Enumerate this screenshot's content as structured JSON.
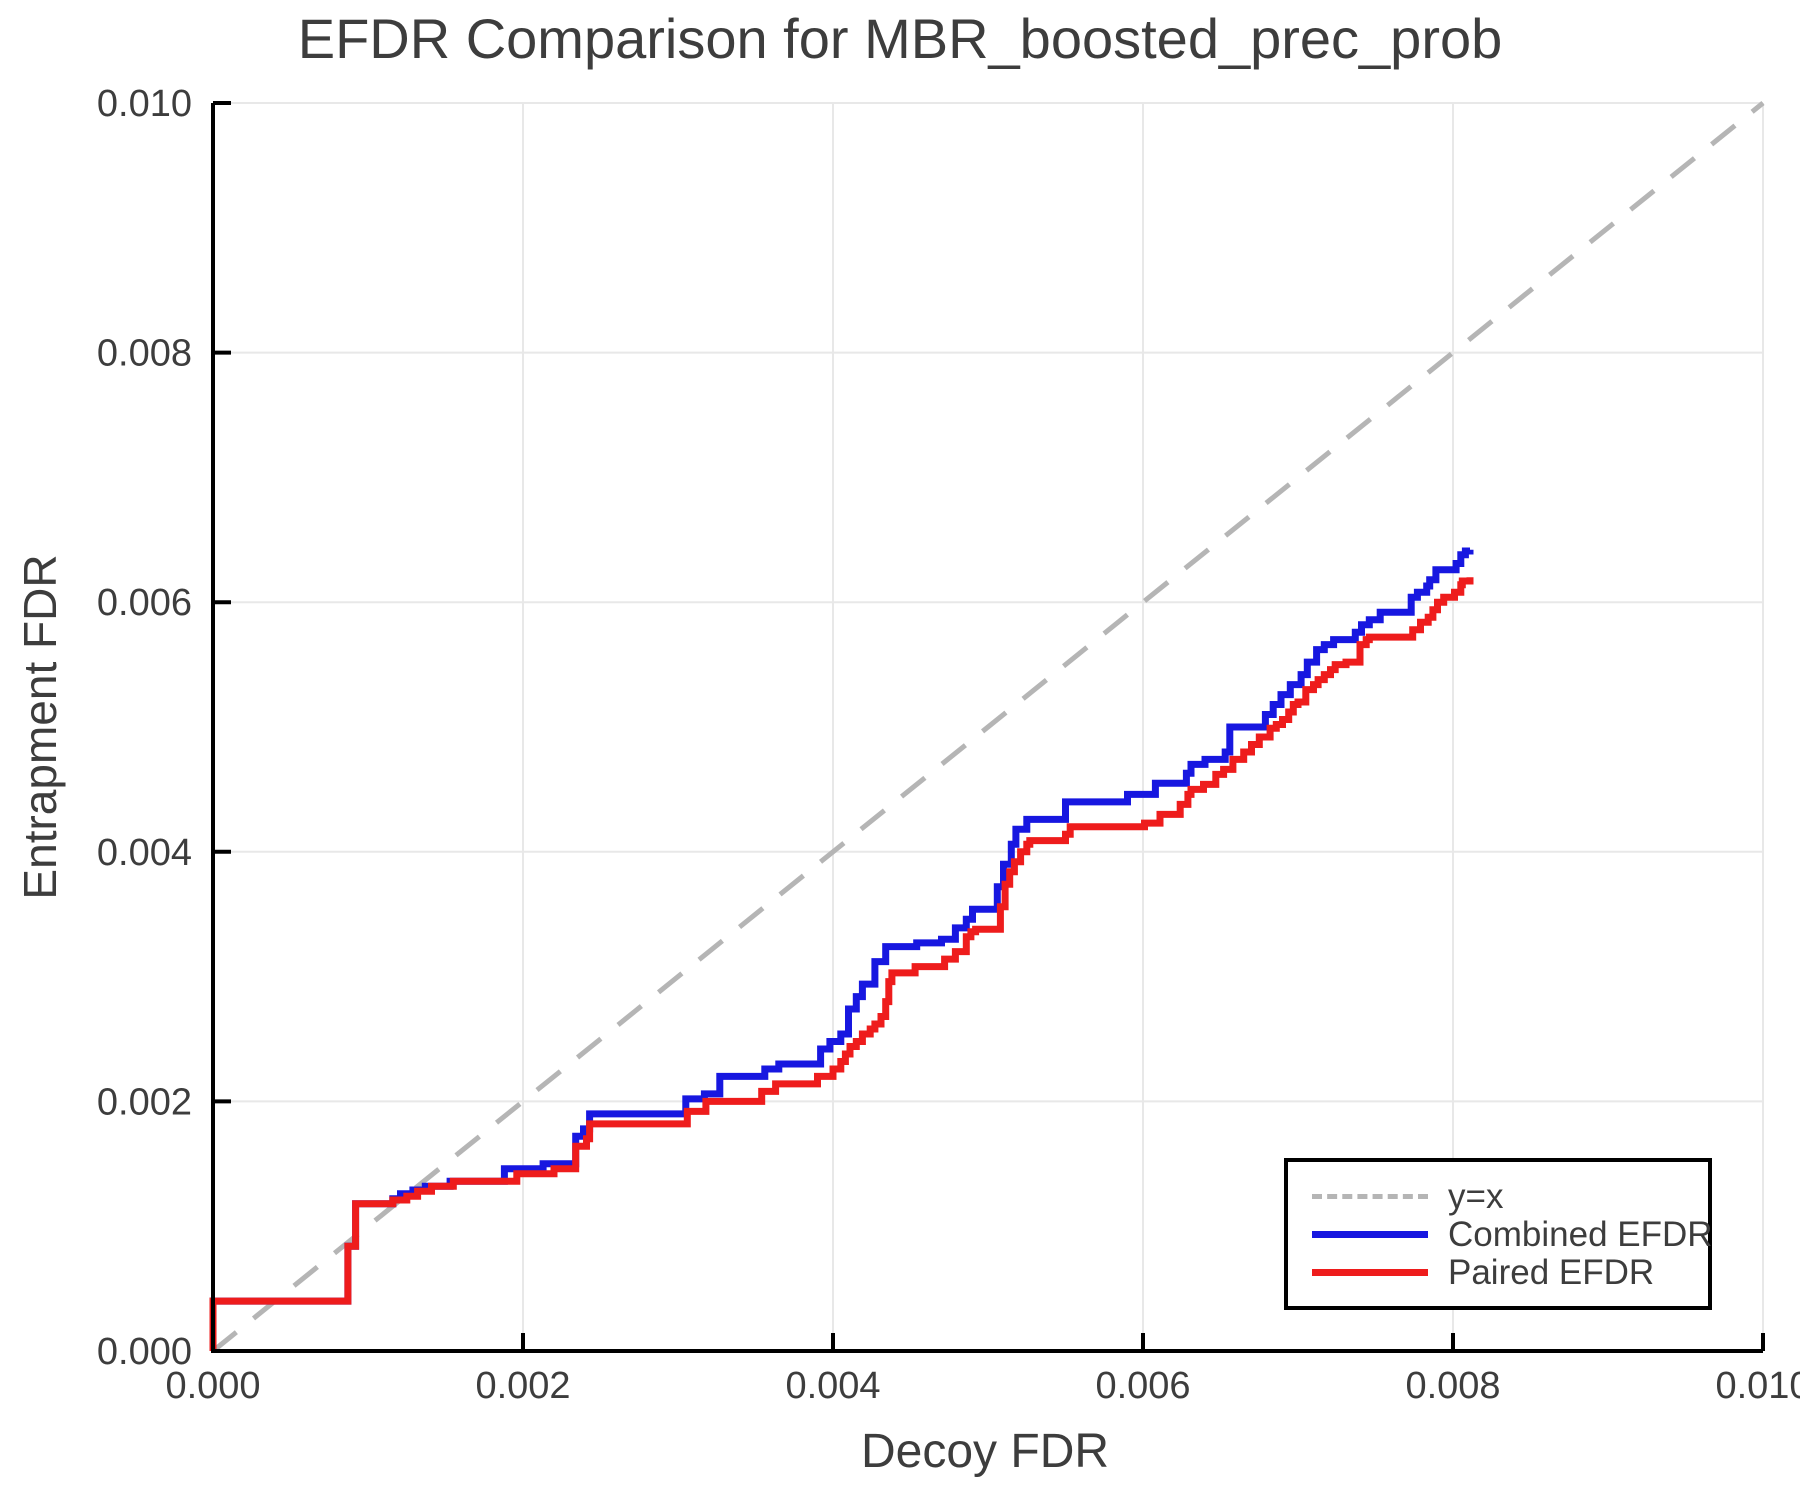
{
  "figure": {
    "title": "EFDR Comparison for MBR_boosted_prec_prob",
    "background": "#ffffff"
  },
  "axes": {
    "x": {
      "label": "Decoy FDR",
      "min": 0,
      "max": 0.01,
      "ticks": [
        {
          "v": 0.0,
          "label": "0.000"
        },
        {
          "v": 0.002,
          "label": "0.002"
        },
        {
          "v": 0.004,
          "label": "0.004"
        },
        {
          "v": 0.006,
          "label": "0.006"
        },
        {
          "v": 0.008,
          "label": "0.008"
        },
        {
          "v": 0.01,
          "label": "0.010"
        }
      ]
    },
    "y": {
      "label": "Entrapment FDR",
      "min": 0,
      "max": 0.01,
      "ticks": [
        {
          "v": 0.0,
          "label": "0.000"
        },
        {
          "v": 0.002,
          "label": "0.002"
        },
        {
          "v": 0.004,
          "label": "0.004"
        },
        {
          "v": 0.006,
          "label": "0.006"
        },
        {
          "v": 0.008,
          "label": "0.008"
        },
        {
          "v": 0.01,
          "label": "0.010"
        }
      ]
    }
  },
  "colors": {
    "text": "#3d3d3d",
    "grid": "#e8e8e8",
    "spine": "#000000",
    "identity": "#b5b5b5",
    "combined": "#1717e0",
    "paired": "#ee1c1c"
  },
  "chart_data": {
    "type": "line",
    "title": "EFDR Comparison for MBR_boosted_prec_prob",
    "xlabel": "Decoy FDR",
    "ylabel": "Entrapment FDR",
    "xlim": [
      0,
      0.01
    ],
    "ylim": [
      0,
      0.01
    ],
    "grid": true,
    "legend_position": "lower right",
    "series": [
      {
        "name": "y=x",
        "style": "dashed",
        "color": "#b5b5b5",
        "interpolation": "linear",
        "points": [
          [
            0,
            0
          ],
          [
            0.01,
            0.01
          ]
        ]
      },
      {
        "name": "Combined EFDR",
        "style": "solid",
        "color": "#1717e0",
        "interpolation": "step-after",
        "points": [
          [
            0,
            0
          ],
          [
            0,
            0.0004
          ],
          [
            0.00087,
            0.00084
          ],
          [
            0.00092,
            0.00118
          ],
          [
            0.00116,
            0.00122
          ],
          [
            0.00121,
            0.00126
          ],
          [
            0.00129,
            0.00129
          ],
          [
            0.00137,
            0.00132
          ],
          [
            0.00153,
            0.00136
          ],
          [
            0.00188,
            0.00146
          ],
          [
            0.00213,
            0.0015
          ],
          [
            0.00234,
            0.00172
          ],
          [
            0.00239,
            0.00178
          ],
          [
            0.00243,
            0.0019
          ],
          [
            0.00305,
            0.00202
          ],
          [
            0.00317,
            0.00206
          ],
          [
            0.00327,
            0.0022
          ],
          [
            0.00356,
            0.00226
          ],
          [
            0.00365,
            0.0023
          ],
          [
            0.00392,
            0.00242
          ],
          [
            0.00398,
            0.00248
          ],
          [
            0.00405,
            0.00254
          ],
          [
            0.0041,
            0.00274
          ],
          [
            0.00415,
            0.00284
          ],
          [
            0.00419,
            0.00294
          ],
          [
            0.00427,
            0.00312
          ],
          [
            0.00434,
            0.00324
          ],
          [
            0.00454,
            0.00327
          ],
          [
            0.0047,
            0.0033
          ],
          [
            0.00479,
            0.00339
          ],
          [
            0.00486,
            0.00346
          ],
          [
            0.0049,
            0.00354
          ],
          [
            0.00506,
            0.00372
          ],
          [
            0.0051,
            0.0039
          ],
          [
            0.00515,
            0.00406
          ],
          [
            0.00518,
            0.00418
          ],
          [
            0.00525,
            0.00426
          ],
          [
            0.0055,
            0.0044
          ],
          [
            0.0059,
            0.00446
          ],
          [
            0.00608,
            0.00455
          ],
          [
            0.00628,
            0.00463
          ],
          [
            0.00631,
            0.0047
          ],
          [
            0.0064,
            0.00474
          ],
          [
            0.00653,
            0.0048
          ],
          [
            0.00656,
            0.005
          ],
          [
            0.00679,
            0.0051
          ],
          [
            0.00684,
            0.00518
          ],
          [
            0.00689,
            0.00526
          ],
          [
            0.00695,
            0.00534
          ],
          [
            0.00702,
            0.00542
          ],
          [
            0.00706,
            0.00552
          ],
          [
            0.00712,
            0.00562
          ],
          [
            0.00717,
            0.00566
          ],
          [
            0.00723,
            0.0057
          ],
          [
            0.00737,
            0.00576
          ],
          [
            0.00741,
            0.00582
          ],
          [
            0.00746,
            0.00586
          ],
          [
            0.00753,
            0.00592
          ],
          [
            0.00773,
            0.00604
          ],
          [
            0.00777,
            0.00608
          ],
          [
            0.00783,
            0.00613
          ],
          [
            0.00785,
            0.00618
          ],
          [
            0.00789,
            0.00626
          ],
          [
            0.00802,
            0.00631
          ],
          [
            0.00805,
            0.00638
          ],
          [
            0.00808,
            0.00641
          ],
          [
            0.00811,
            0.00642
          ]
        ]
      },
      {
        "name": "Paired EFDR",
        "style": "solid",
        "color": "#ee1c1c",
        "interpolation": "step-after",
        "points": [
          [
            0,
            0
          ],
          [
            0,
            0.0004
          ],
          [
            0.00087,
            0.00084
          ],
          [
            0.00092,
            0.00118
          ],
          [
            0.00116,
            0.00121
          ],
          [
            0.00125,
            0.00124
          ],
          [
            0.00132,
            0.00128
          ],
          [
            0.00141,
            0.00132
          ],
          [
            0.00155,
            0.00136
          ],
          [
            0.00196,
            0.00142
          ],
          [
            0.0022,
            0.00146
          ],
          [
            0.00234,
            0.00164
          ],
          [
            0.00241,
            0.0017
          ],
          [
            0.00243,
            0.00182
          ],
          [
            0.00306,
            0.00192
          ],
          [
            0.00318,
            0.002
          ],
          [
            0.00354,
            0.00208
          ],
          [
            0.00363,
            0.00214
          ],
          [
            0.0039,
            0.0022
          ],
          [
            0.004,
            0.00226
          ],
          [
            0.00405,
            0.00232
          ],
          [
            0.00408,
            0.00238
          ],
          [
            0.00411,
            0.00244
          ],
          [
            0.00415,
            0.00248
          ],
          [
            0.00419,
            0.00254
          ],
          [
            0.00424,
            0.00258
          ],
          [
            0.00427,
            0.00262
          ],
          [
            0.00431,
            0.00268
          ],
          [
            0.00434,
            0.0028
          ],
          [
            0.00436,
            0.00296
          ],
          [
            0.00438,
            0.00303
          ],
          [
            0.00453,
            0.00308
          ],
          [
            0.00472,
            0.00314
          ],
          [
            0.00479,
            0.0032
          ],
          [
            0.00486,
            0.00332
          ],
          [
            0.00489,
            0.00336
          ],
          [
            0.00492,
            0.00338
          ],
          [
            0.00508,
            0.00356
          ],
          [
            0.00511,
            0.00374
          ],
          [
            0.00514,
            0.00384
          ],
          [
            0.00517,
            0.00392
          ],
          [
            0.00521,
            0.004
          ],
          [
            0.00525,
            0.00406
          ],
          [
            0.00527,
            0.00409
          ],
          [
            0.0055,
            0.00414
          ],
          [
            0.00553,
            0.0042
          ],
          [
            0.00601,
            0.00423
          ],
          [
            0.00611,
            0.0043
          ],
          [
            0.00624,
            0.00438
          ],
          [
            0.00629,
            0.00446
          ],
          [
            0.00631,
            0.0045
          ],
          [
            0.00639,
            0.00454
          ],
          [
            0.00647,
            0.00462
          ],
          [
            0.00652,
            0.00466
          ],
          [
            0.00658,
            0.00474
          ],
          [
            0.00665,
            0.0048
          ],
          [
            0.0067,
            0.00486
          ],
          [
            0.00675,
            0.00492
          ],
          [
            0.00682,
            0.00499
          ],
          [
            0.00686,
            0.00502
          ],
          [
            0.0069,
            0.00506
          ],
          [
            0.00694,
            0.00512
          ],
          [
            0.00697,
            0.00518
          ],
          [
            0.007,
            0.0052
          ],
          [
            0.00705,
            0.0053
          ],
          [
            0.0071,
            0.00534
          ],
          [
            0.00713,
            0.00538
          ],
          [
            0.00717,
            0.00542
          ],
          [
            0.00721,
            0.00546
          ],
          [
            0.00724,
            0.0055
          ],
          [
            0.00731,
            0.00552
          ],
          [
            0.0074,
            0.00566
          ],
          [
            0.00744,
            0.0057
          ],
          [
            0.00746,
            0.00572
          ],
          [
            0.00774,
            0.00578
          ],
          [
            0.00779,
            0.00584
          ],
          [
            0.00784,
            0.00588
          ],
          [
            0.00787,
            0.00594
          ],
          [
            0.0079,
            0.006
          ],
          [
            0.00794,
            0.00604
          ],
          [
            0.00801,
            0.00608
          ],
          [
            0.00805,
            0.00614
          ],
          [
            0.00806,
            0.00617
          ],
          [
            0.00811,
            0.0062
          ]
        ]
      }
    ]
  }
}
